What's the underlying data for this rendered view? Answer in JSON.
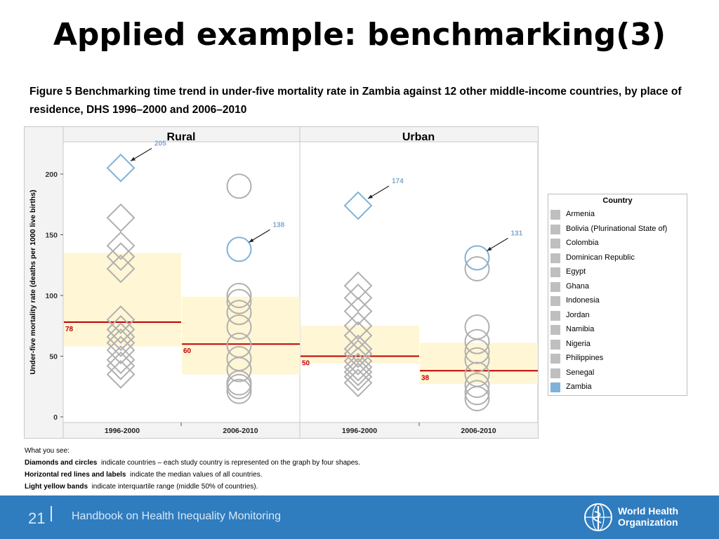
{
  "slide": {
    "title": "Applied example: benchmarking(3)",
    "caption": "Figure 5 Benchmarking time trend in under-five mortality rate in Zambia against 12 other middle-income countries, by place of residence, DHS 1996–2000 and 2006–2010"
  },
  "chart_data": {
    "type": "scatter",
    "ylabel": "Under-five mortality rate (deaths per 1000 live births)",
    "ylim": [
      0,
      215
    ],
    "yticks": [
      0,
      50,
      100,
      150,
      200
    ],
    "grid": false,
    "legend_position": "right",
    "panels": [
      {
        "label": "Rural",
        "categories": [
          "1996-2000",
          "2006-2010"
        ],
        "groups": [
          {
            "period": "1996-2000",
            "shape": "diamond",
            "median": 78,
            "median_label": "78",
            "iqr": [
              58,
              135
            ],
            "others": [
              35,
              42,
              47,
              55,
              61,
              66,
              72,
              80,
              122,
              132,
              141,
              164
            ],
            "zambia": 205,
            "zambia_label": "205"
          },
          {
            "period": "2006-2010",
            "shape": "circle",
            "median": 60,
            "median_label": "60",
            "iqr": [
              35,
              99
            ],
            "others": [
              21,
              25,
              28,
              39,
              48,
              59,
              74,
              86,
              95,
              100,
              190
            ],
            "zambia": 138,
            "zambia_label": "138"
          }
        ]
      },
      {
        "label": "Urban",
        "categories": [
          "1996-2000",
          "2006-2010"
        ],
        "groups": [
          {
            "period": "1996-2000",
            "shape": "diamond",
            "median": 50,
            "median_label": "50",
            "iqr": [
              44,
              75
            ],
            "others": [
              28,
              33,
              37,
              41,
              46,
              52,
              56,
              67,
              75,
              87,
              98,
              108
            ],
            "zambia": 174,
            "zambia_label": "174"
          },
          {
            "period": "2006-2010",
            "shape": "circle",
            "median": 38,
            "median_label": "38",
            "iqr": [
              27,
              61
            ],
            "others": [
              15,
              20,
              26,
              35,
              47,
              54,
              62,
              74,
              122
            ],
            "zambia": 131,
            "zambia_label": "131"
          }
        ]
      }
    ],
    "colors": {
      "zambia": "#7fb2d8",
      "others": "#b0b0b0",
      "median": "#c00000",
      "band": "#fff6d5",
      "label": "#7fa7cf"
    }
  },
  "legend": {
    "title": "Country",
    "items": [
      "Armenia",
      "Bolivia (Plurinational State of)",
      "Colombia",
      "Dominican Republic",
      "Egypt",
      "Ghana",
      "Indonesia",
      "Jordan",
      "Namibia",
      "Nigeria",
      "Philippines",
      "Senegal",
      "Zambia"
    ],
    "highlight": "Zambia"
  },
  "notes": {
    "header": "What you see:",
    "line1_bold": "Diamonds and circles",
    "line1_text": "indicate countries – each study country is represented on the graph by four shapes.",
    "line2_bold": "Horizontal red lines and labels",
    "line2_text": "indicate the median values of all countries.",
    "line3_bold": "Light yellow bands",
    "line3_text": "indicate interquartile range (middle 50% of countries)."
  },
  "footer": {
    "page_number": "21",
    "text": "Handbook on Health Inequality Monitoring",
    "org_line1": "World Health",
    "org_line2": "Organization",
    "logo_icon": "who-emblem-icon"
  }
}
